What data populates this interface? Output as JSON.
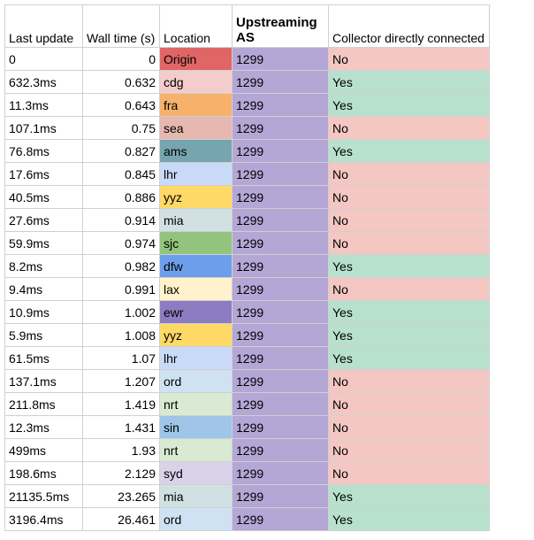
{
  "colors": {
    "as_fill": "#b4a7d6",
    "yes_fill": "#b7e1cd",
    "no_fill": "#f4c7c3",
    "grid": "#d0d0d0"
  },
  "headers": [
    "Last update",
    "Wall time (s)",
    "Location",
    "Upstreaming AS",
    "Collector directly connected"
  ],
  "rows": [
    {
      "last_update": "0",
      "wall_time": "0",
      "location": "Origin",
      "loc_color": "#e06666",
      "as": "1299",
      "collector": "No"
    },
    {
      "last_update": "632.3ms",
      "wall_time": "0.632",
      "location": "cdg",
      "loc_color": "#f4cccc",
      "as": "1299",
      "collector": "Yes"
    },
    {
      "last_update": "11.3ms",
      "wall_time": "0.643",
      "location": "fra",
      "loc_color": "#f6b26b",
      "as": "1299",
      "collector": "Yes"
    },
    {
      "last_update": "107.1ms",
      "wall_time": "0.75",
      "location": "sea",
      "loc_color": "#e6b8af",
      "as": "1299",
      "collector": "No"
    },
    {
      "last_update": "76.8ms",
      "wall_time": "0.827",
      "location": "ams",
      "loc_color": "#76a5af",
      "as": "1299",
      "collector": "Yes"
    },
    {
      "last_update": "17.6ms",
      "wall_time": "0.845",
      "location": "lhr",
      "loc_color": "#c9daf8",
      "as": "1299",
      "collector": "No"
    },
    {
      "last_update": "40.5ms",
      "wall_time": "0.886",
      "location": "yyz",
      "loc_color": "#ffd966",
      "as": "1299",
      "collector": "No"
    },
    {
      "last_update": "27.6ms",
      "wall_time": "0.914",
      "location": "mia",
      "loc_color": "#d0e0e3",
      "as": "1299",
      "collector": "No"
    },
    {
      "last_update": "59.9ms",
      "wall_time": "0.974",
      "location": "sjc",
      "loc_color": "#93c47d",
      "as": "1299",
      "collector": "No"
    },
    {
      "last_update": "8.2ms",
      "wall_time": "0.982",
      "location": "dfw",
      "loc_color": "#6d9eeb",
      "as": "1299",
      "collector": "Yes"
    },
    {
      "last_update": "9.4ms",
      "wall_time": "0.991",
      "location": "lax",
      "loc_color": "#fff2cc",
      "as": "1299",
      "collector": "No"
    },
    {
      "last_update": "10.9ms",
      "wall_time": "1.002",
      "location": "ewr",
      "loc_color": "#8e7cc3",
      "as": "1299",
      "collector": "Yes"
    },
    {
      "last_update": "5.9ms",
      "wall_time": "1.008",
      "location": "yyz",
      "loc_color": "#ffd966",
      "as": "1299",
      "collector": "Yes"
    },
    {
      "last_update": "61.5ms",
      "wall_time": "1.07",
      "location": "lhr",
      "loc_color": "#c9daf8",
      "as": "1299",
      "collector": "Yes"
    },
    {
      "last_update": "137.1ms",
      "wall_time": "1.207",
      "location": "ord",
      "loc_color": "#cfe2f3",
      "as": "1299",
      "collector": "No"
    },
    {
      "last_update": "211.8ms",
      "wall_time": "1.419",
      "location": "nrt",
      "loc_color": "#d9ead3",
      "as": "1299",
      "collector": "No"
    },
    {
      "last_update": "12.3ms",
      "wall_time": "1.431",
      "location": "sin",
      "loc_color": "#9fc5e8",
      "as": "1299",
      "collector": "No"
    },
    {
      "last_update": "499ms",
      "wall_time": "1.93",
      "location": "nrt",
      "loc_color": "#d9ead3",
      "as": "1299",
      "collector": "No"
    },
    {
      "last_update": "198.6ms",
      "wall_time": "2.129",
      "location": "syd",
      "loc_color": "#d9d2e9",
      "as": "1299",
      "collector": "No"
    },
    {
      "last_update": "21135.5ms",
      "wall_time": "23.265",
      "location": "mia",
      "loc_color": "#d0e0e3",
      "as": "1299",
      "collector": "Yes"
    },
    {
      "last_update": "3196.4ms",
      "wall_time": "26.461",
      "location": "ord",
      "loc_color": "#cfe2f3",
      "as": "1299",
      "collector": "Yes"
    }
  ]
}
